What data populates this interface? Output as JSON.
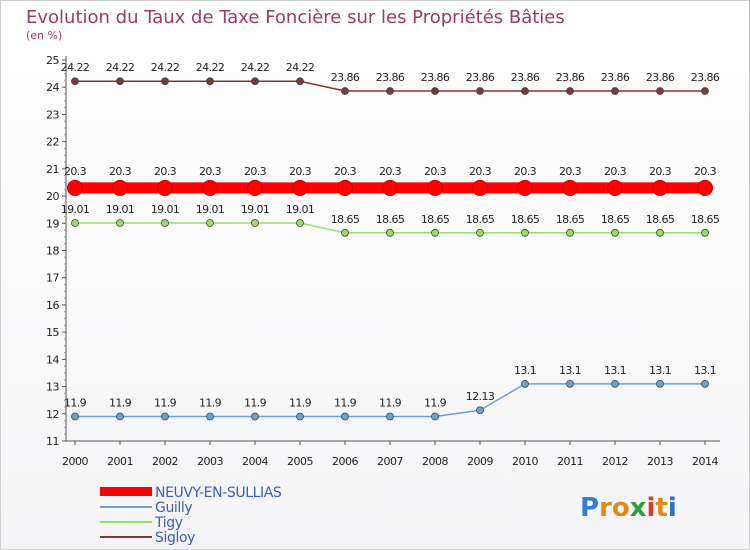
{
  "chart_data": {
    "type": "line",
    "title": "Evolution du Taux de Taxe Foncière sur les Propriétés Bâties",
    "subtitle": "(en %)",
    "x": [
      "2000",
      "2001",
      "2002",
      "2003",
      "2004",
      "2005",
      "2006",
      "2007",
      "2008",
      "2009",
      "2010",
      "2011",
      "2012",
      "2013",
      "2014"
    ],
    "ylim": [
      11,
      25
    ],
    "yticks": [
      "11",
      "12",
      "13",
      "14",
      "15",
      "16",
      "17",
      "18",
      "19",
      "20",
      "21",
      "22",
      "23",
      "24",
      "25"
    ],
    "series": [
      {
        "name": "NEUVY-EN-SULLIAS",
        "color": "#ff0000",
        "values": [
          20.3,
          20.3,
          20.3,
          20.3,
          20.3,
          20.3,
          20.3,
          20.3,
          20.3,
          20.3,
          20.3,
          20.3,
          20.3,
          20.3,
          20.3
        ],
        "labels": [
          "20.3",
          "20.3",
          "20.3",
          "20.3",
          "20.3",
          "20.3",
          "20.3",
          "20.3",
          "20.3",
          "20.3",
          "20.3",
          "20.3",
          "20.3",
          "20.3",
          "20.3"
        ]
      },
      {
        "name": "Guilly",
        "color": "#6fa0d2",
        "values": [
          11.9,
          11.9,
          11.9,
          11.9,
          11.9,
          11.9,
          11.9,
          11.9,
          11.9,
          12.13,
          13.1,
          13.1,
          13.1,
          13.1,
          13.1
        ],
        "labels": [
          "11.9",
          "11.9",
          "11.9",
          "11.9",
          "11.9",
          "11.9",
          "11.9",
          "11.9",
          "11.9",
          "12.13",
          "13.1",
          "13.1",
          "13.1",
          "13.1",
          "13.1"
        ]
      },
      {
        "name": "Tigy",
        "color": "#99dd66",
        "values": [
          19.01,
          19.01,
          19.01,
          19.01,
          19.01,
          19.01,
          18.65,
          18.65,
          18.65,
          18.65,
          18.65,
          18.65,
          18.65,
          18.65,
          18.65
        ],
        "labels": [
          "19.01",
          "19.01",
          "19.01",
          "19.01",
          "19.01",
          "19.01",
          "18.65",
          "18.65",
          "18.65",
          "18.65",
          "18.65",
          "18.65",
          "18.65",
          "18.65",
          "18.65"
        ]
      },
      {
        "name": "Sigloy",
        "color": "#7a3a3a",
        "values": [
          24.22,
          24.22,
          24.22,
          24.22,
          24.22,
          24.22,
          23.86,
          23.86,
          23.86,
          23.86,
          23.86,
          23.86,
          23.86,
          23.86,
          23.86
        ],
        "labels": [
          "24.22",
          "24.22",
          "24.22",
          "24.22",
          "24.22",
          "24.22",
          "23.86",
          "23.86",
          "23.86",
          "23.86",
          "23.86",
          "23.86",
          "23.86",
          "23.86",
          "23.86"
        ]
      }
    ],
    "legend_position": "bottom-left"
  },
  "brand": {
    "letters": [
      "P",
      "r",
      "o",
      "x",
      "i",
      "t",
      "i"
    ],
    "colors": [
      "#3a7bd5",
      "#e08a1e",
      "#e08a1e",
      "#2e9d3a",
      "#e03a2e",
      "#e08a1e",
      "#2e6fd0"
    ]
  }
}
